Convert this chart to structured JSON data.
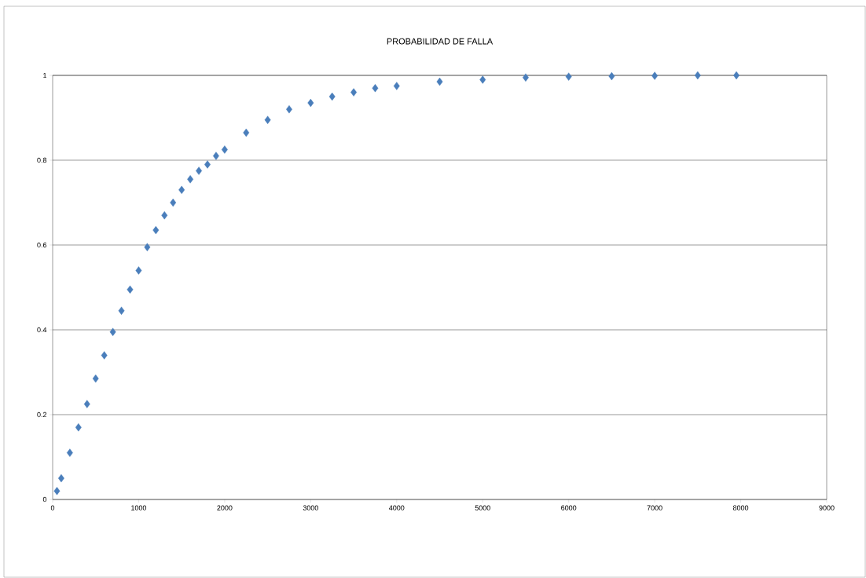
{
  "chart_data": {
    "type": "scatter",
    "title": "PROBABILIDAD  DE  FALLA",
    "marker": "diamond",
    "grid": "y",
    "xlim": [
      0,
      9000
    ],
    "xticks": [
      0,
      1000,
      2000,
      3000,
      4000,
      5000,
      6000,
      7000,
      8000,
      9000
    ],
    "ylim": [
      0,
      1
    ],
    "yticks": [
      0,
      0.2,
      0.4,
      0.6,
      0.8,
      1
    ],
    "series": [
      {
        "color": "#4a7ebb",
        "x": [
          50,
          100,
          200,
          300,
          400,
          500,
          600,
          700,
          800,
          900,
          1000,
          1100,
          1200,
          1300,
          1400,
          1500,
          1600,
          1700,
          1800,
          1900,
          2000,
          2250,
          2500,
          2750,
          3000,
          3250,
          3500,
          3750,
          4000,
          4500,
          5000,
          5500,
          6000,
          6500,
          7000,
          7500,
          7950
        ],
        "values": [
          0.02,
          0.05,
          0.11,
          0.17,
          0.225,
          0.285,
          0.34,
          0.395,
          0.445,
          0.495,
          0.54,
          0.595,
          0.635,
          0.67,
          0.7,
          0.73,
          0.755,
          0.775,
          0.79,
          0.81,
          0.825,
          0.865,
          0.895,
          0.92,
          0.935,
          0.95,
          0.96,
          0.97,
          0.975,
          0.985,
          0.99,
          0.995,
          0.997,
          0.998,
          0.999,
          1.0,
          1.0
        ]
      }
    ]
  }
}
